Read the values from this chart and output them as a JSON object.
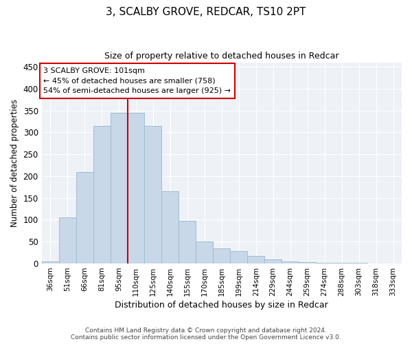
{
  "title": "3, SCALBY GROVE, REDCAR, TS10 2PT",
  "subtitle": "Size of property relative to detached houses in Redcar",
  "xlabel": "Distribution of detached houses by size in Redcar",
  "ylabel": "Number of detached properties",
  "categories": [
    "36sqm",
    "51sqm",
    "66sqm",
    "81sqm",
    "95sqm",
    "110sqm",
    "125sqm",
    "140sqm",
    "155sqm",
    "170sqm",
    "185sqm",
    "199sqm",
    "214sqm",
    "229sqm",
    "244sqm",
    "259sqm",
    "274sqm",
    "288sqm",
    "303sqm",
    "318sqm",
    "333sqm"
  ],
  "values": [
    5,
    105,
    210,
    315,
    345,
    345,
    315,
    165,
    97,
    50,
    35,
    28,
    18,
    10,
    5,
    3,
    2,
    1,
    1,
    0,
    0
  ],
  "bar_color": "#c8d8e8",
  "bar_edgecolor": "#a0bcd0",
  "bar_linewidth": 0.7,
  "vline_x": 4.5,
  "vline_color": "#cc0000",
  "annotation_line1": "3 SCALBY GROVE: 101sqm",
  "annotation_line2": "← 45% of detached houses are smaller (758)",
  "annotation_line3": "54% of semi-detached houses are larger (925) →",
  "annotation_box_color": "#cc0000",
  "ylim": [
    0,
    460
  ],
  "yticks": [
    0,
    50,
    100,
    150,
    200,
    250,
    300,
    350,
    400,
    450
  ],
  "bg_color": "#eef2f7",
  "grid_color": "#ffffff",
  "footer_line1": "Contains HM Land Registry data © Crown copyright and database right 2024.",
  "footer_line2": "Contains public sector information licensed under the Open Government Licence v3.0."
}
